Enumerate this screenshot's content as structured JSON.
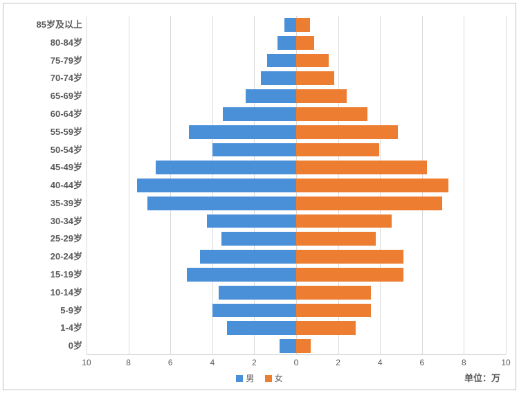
{
  "chart": {
    "type": "population-pyramid",
    "background_color": "#ffffff",
    "border_color": "#bfbfbf",
    "grid_color": "#d9d9d9",
    "text_color": "#595959",
    "label_fontsize": 13,
    "label_fontweight": 700,
    "tick_fontsize": 12,
    "x_axis": {
      "min": -10,
      "max": 10,
      "step": 2,
      "ticks": [
        -10,
        -8,
        -6,
        -4,
        -2,
        0,
        2,
        4,
        6,
        8,
        10
      ],
      "tick_labels": [
        "10",
        "8",
        "6",
        "4",
        "2",
        "0",
        "2",
        "4",
        "6",
        "8",
        "10"
      ]
    },
    "series": {
      "male": {
        "label": "男",
        "color": "#4a90d9"
      },
      "female": {
        "label": "女",
        "color": "#ed7d31"
      }
    },
    "categories": [
      {
        "label": "85岁及以上",
        "male": 0.55,
        "female": 0.65
      },
      {
        "label": "80-84岁",
        "male": 0.9,
        "female": 0.85
      },
      {
        "label": "75-79岁",
        "male": 1.4,
        "female": 1.55
      },
      {
        "label": "70-74岁",
        "male": 1.7,
        "female": 1.8
      },
      {
        "label": "65-69岁",
        "male": 2.4,
        "female": 2.4
      },
      {
        "label": "60-64岁",
        "male": 3.5,
        "female": 3.4
      },
      {
        "label": "55-59岁",
        "male": 5.1,
        "female": 4.85
      },
      {
        "label": "50-54岁",
        "male": 4.0,
        "female": 3.95
      },
      {
        "label": "45-49岁",
        "male": 6.7,
        "female": 6.25
      },
      {
        "label": "40-44岁",
        "male": 7.6,
        "female": 7.25
      },
      {
        "label": "35-39岁",
        "male": 7.1,
        "female": 6.95
      },
      {
        "label": "30-34岁",
        "male": 4.25,
        "female": 4.55
      },
      {
        "label": "25-29岁",
        "male": 3.55,
        "female": 3.8
      },
      {
        "label": "20-24岁",
        "male": 4.6,
        "female": 5.1
      },
      {
        "label": "15-19岁",
        "male": 5.2,
        "female": 5.1
      },
      {
        "label": "10-14岁",
        "male": 3.7,
        "female": 3.55
      },
      {
        "label": "5-9岁",
        "male": 4.0,
        "female": 3.55
      },
      {
        "label": "1-4岁",
        "male": 3.3,
        "female": 2.85
      },
      {
        "label": "0岁",
        "male": 0.8,
        "female": 0.7
      }
    ],
    "unit_label": "单位：万",
    "bar_gap_ratio": 0.23
  }
}
